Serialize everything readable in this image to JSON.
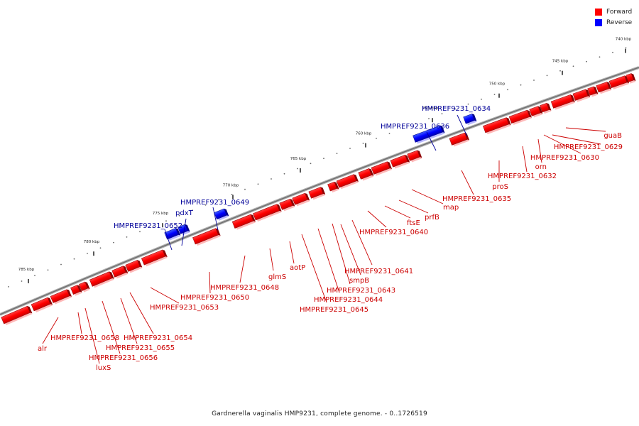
{
  "legend": {
    "forward_label": "Forward",
    "reverse_label": "Reverse",
    "forward_color": "#ff0000",
    "reverse_color": "#0000ff"
  },
  "label_colors": {
    "forward": "#cc0000",
    "reverse": "#000099"
  },
  "caption": "Gardnerella vaginalis HMP9231, complete genome. - 0..1726519",
  "ticks": [
    "740 kbp",
    "745 kbp",
    "750 kbp",
    "755 kbp",
    "760 kbp",
    "765 kbp",
    "770 kbp",
    "775 kbp",
    "780 kbp",
    "785 kbp"
  ],
  "labels": [
    {
      "text": "guaB",
      "strand": "forward"
    },
    {
      "text": "HMPREF9231_0629",
      "strand": "forward"
    },
    {
      "text": "HMPREF9231_0630",
      "strand": "forward"
    },
    {
      "text": "orn",
      "strand": "forward"
    },
    {
      "text": "HMPREF9231_0632",
      "strand": "forward"
    },
    {
      "text": "proS",
      "strand": "forward"
    },
    {
      "text": "HMPREF9231_0634",
      "strand": "reverse"
    },
    {
      "text": "HMPREF9231_0635",
      "strand": "forward"
    },
    {
      "text": "HMPREF9231_0636",
      "strand": "reverse"
    },
    {
      "text": "map",
      "strand": "forward"
    },
    {
      "text": "prfB",
      "strand": "forward"
    },
    {
      "text": "ftsE",
      "strand": "forward"
    },
    {
      "text": "HMPREF9231_0640",
      "strand": "forward"
    },
    {
      "text": "HMPREF9231_0641",
      "strand": "forward"
    },
    {
      "text": "smpB",
      "strand": "forward"
    },
    {
      "text": "HMPREF9231_0643",
      "strand": "forward"
    },
    {
      "text": "HMPREF9231_0644",
      "strand": "forward"
    },
    {
      "text": "HMPREF9231_0645",
      "strand": "forward"
    },
    {
      "text": "aotP",
      "strand": "forward"
    },
    {
      "text": "glmS",
      "strand": "forward"
    },
    {
      "text": "HMPREF9231_0648",
      "strand": "forward"
    },
    {
      "text": "HMPREF9231_0649",
      "strand": "reverse"
    },
    {
      "text": "HMPREF9231_0650",
      "strand": "forward"
    },
    {
      "text": "pdxT",
      "strand": "reverse"
    },
    {
      "text": "HMPREF9231_0652",
      "strand": "reverse"
    },
    {
      "text": "HMPREF9231_0653",
      "strand": "forward"
    },
    {
      "text": "HMPREF9231_0654",
      "strand": "forward"
    },
    {
      "text": "HMPREF9231_0655",
      "strand": "forward"
    },
    {
      "text": "HMPREF9231_0656",
      "strand": "forward"
    },
    {
      "text": "luxS",
      "strand": "forward"
    },
    {
      "text": "HMPREF9231_0658",
      "strand": "forward"
    },
    {
      "text": "alr",
      "strand": "forward"
    }
  ]
}
